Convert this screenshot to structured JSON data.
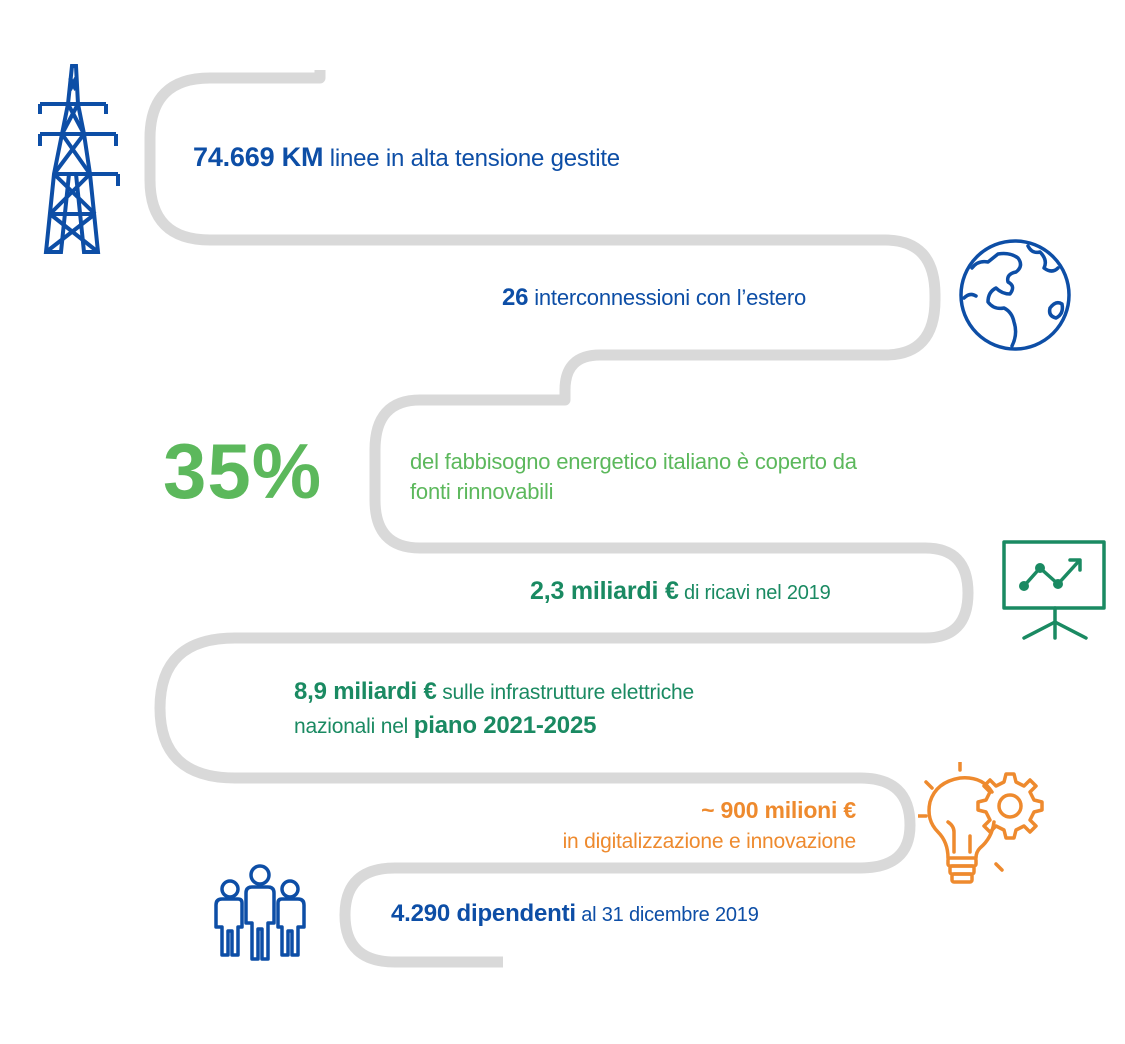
{
  "stats": {
    "lines": {
      "value": "74.669 KM",
      "text": " linee in alta tensione gestite"
    },
    "interconnections": {
      "value": "26",
      "text": " interconnessioni con l’estero"
    },
    "renewables": {
      "percent": "35%",
      "line1": "del fabbisogno energetico italiano è coperto da",
      "line2": "fonti rinnovabili"
    },
    "revenue": {
      "value": "2,3 miliardi €",
      "text": " di ricavi nel 2019"
    },
    "investment": {
      "value": "8,9 miliardi €",
      "text1": " sulle infrastrutture elettriche",
      "text2": "nazionali nel ",
      "plan": "piano 2021-2025"
    },
    "digital": {
      "value": "~ 900 milioni €",
      "text": "in digitalizzazione e innovazione"
    },
    "employees": {
      "value": "4.290 dipendenti",
      "text": " al 31 dicembre 2019"
    }
  },
  "icons": [
    "pylon-icon",
    "globe-icon",
    "presentation-chart-icon",
    "lightbulb-gear-icon",
    "people-icon"
  ],
  "colors": {
    "blue": "#0d4ea6",
    "teal": "#1a8a62",
    "green": "#5cb85c",
    "orange": "#ee8a2e",
    "path": "#d9d9d9"
  }
}
